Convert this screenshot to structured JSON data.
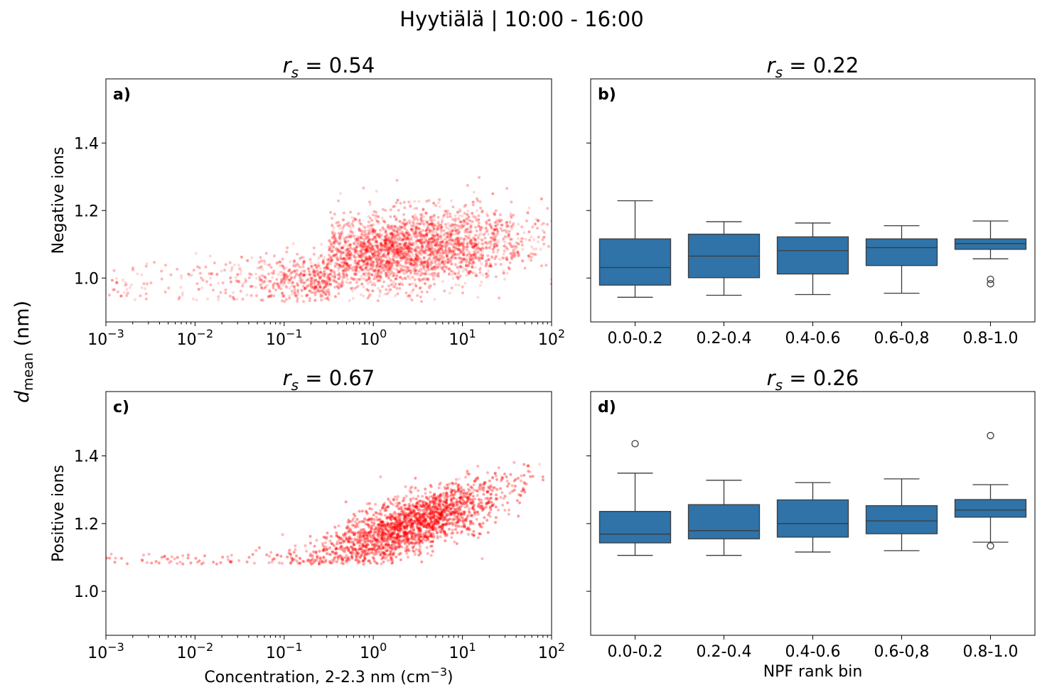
{
  "figure": {
    "suptitle": "Hyytiälä | 10:00 - 16:00",
    "shared_ylabel_main": "d",
    "shared_ylabel_sub": "mean",
    "shared_ylabel_unit": " (nm)"
  },
  "colors": {
    "scatter": "#ff0000",
    "box_fill": "#2f73a8",
    "box_line": "#3b3b3b"
  },
  "chart_data": [
    {
      "id": "a",
      "type": "scatter",
      "panel_label": "a)",
      "title_prefix": "r",
      "title_sub": "s",
      "title_value": " = 0.54",
      "xlabel": "",
      "ylabel": "Negative ions",
      "xscale": "log",
      "xlim": [
        0.001,
        100
      ],
      "ylim": [
        0.87,
        1.59
      ],
      "xtick_values": [
        0.001,
        0.01,
        0.1,
        1,
        10,
        100
      ],
      "xtick_bases": [
        "10",
        "10",
        "10",
        "10",
        "10",
        "10"
      ],
      "xtick_exps": [
        "−3",
        "−2",
        "−1",
        "0",
        "1",
        "2"
      ],
      "ytick_values": [
        1.0,
        1.2,
        1.4
      ],
      "ytick_labels": [
        "1.0",
        "1.2",
        "1.4"
      ],
      "density_core": [
        {
          "x": 0.001,
          "y": 0.97,
          "sx": 0.0,
          "sy": 0.0
        },
        {
          "x": 2.0,
          "y": 1.1,
          "sx": 0.5,
          "sy": 0.07
        }
      ],
      "regression": {
        "log10x_center": 0.3,
        "slope": 0.025,
        "y_at_center": 1.08,
        "spread": 0.055
      },
      "x_log10_range": [
        -3,
        2
      ],
      "alpha": 0.15
    },
    {
      "id": "b",
      "type": "box",
      "panel_label": "b)",
      "title_prefix": "r",
      "title_sub": "s",
      "title_value": " = 0.22",
      "xlabel": "",
      "categories": [
        "0.0-0.2",
        "0.2-0.4",
        "0.4-0.6",
        "0.6-0,8",
        "0.8-1.0"
      ],
      "ylim": [
        0.87,
        1.59
      ],
      "ytick_values": [
        1.0,
        1.2,
        1.4
      ],
      "boxes": [
        {
          "whislo": 0.943,
          "q1": 0.979,
          "med": 1.031,
          "q3": 1.116,
          "whishi": 1.229,
          "fliers": []
        },
        {
          "whislo": 0.949,
          "q1": 1.001,
          "med": 1.065,
          "q3": 1.13,
          "whishi": 1.167,
          "fliers": []
        },
        {
          "whislo": 0.951,
          "q1": 1.012,
          "med": 1.081,
          "q3": 1.122,
          "whishi": 1.163,
          "fliers": []
        },
        {
          "whislo": 0.955,
          "q1": 1.037,
          "med": 1.09,
          "q3": 1.116,
          "whishi": 1.155,
          "fliers": []
        },
        {
          "whislo": 1.057,
          "q1": 1.085,
          "med": 1.102,
          "q3": 1.116,
          "whishi": 1.169,
          "fliers": [
            0.996,
            0.983
          ]
        }
      ]
    },
    {
      "id": "c",
      "type": "scatter",
      "panel_label": "c)",
      "title_prefix": "r",
      "title_sub": "s",
      "title_value": " = 0.67",
      "xlabel": "Concentration, 2-2.3 nm (cm",
      "xlabel_sup": "−3",
      "xlabel_end": ")",
      "ylabel": "Positive ions",
      "xscale": "log",
      "xlim": [
        0.001,
        100
      ],
      "ylim": [
        0.87,
        1.59
      ],
      "xtick_values": [
        0.001,
        0.01,
        0.1,
        1,
        10,
        100
      ],
      "xtick_bases": [
        "10",
        "10",
        "10",
        "10",
        "10",
        "10"
      ],
      "xtick_exps": [
        "−3",
        "−2",
        "−1",
        "0",
        "1",
        "2"
      ],
      "ytick_values": [
        1.0,
        1.2,
        1.4
      ],
      "ytick_labels": [
        "1.0",
        "1.2",
        "1.4"
      ],
      "regression": {
        "log10x_center": 0.45,
        "slope": 0.09,
        "y_at_center": 1.2,
        "spread": 0.04
      },
      "x_log10_range": [
        -3,
        2
      ],
      "alpha": 0.15
    },
    {
      "id": "d",
      "type": "box",
      "panel_label": "d)",
      "title_prefix": "r",
      "title_sub": "s",
      "title_value": " = 0.26",
      "xlabel": "NPF rank bin",
      "categories": [
        "0.0-0.2",
        "0.2-0.4",
        "0.4-0.6",
        "0.6-0,8",
        "0.8-1.0"
      ],
      "ylim": [
        0.87,
        1.59
      ],
      "ytick_values": [
        1.0,
        1.2,
        1.4
      ],
      "boxes": [
        {
          "whislo": 1.106,
          "q1": 1.143,
          "med": 1.169,
          "q3": 1.236,
          "whishi": 1.349,
          "fliers": [
            1.436
          ]
        },
        {
          "whislo": 1.106,
          "q1": 1.155,
          "med": 1.179,
          "q3": 1.256,
          "whishi": 1.328,
          "fliers": []
        },
        {
          "whislo": 1.116,
          "q1": 1.16,
          "med": 1.2,
          "q3": 1.27,
          "whishi": 1.321,
          "fliers": []
        },
        {
          "whislo": 1.12,
          "q1": 1.17,
          "med": 1.208,
          "q3": 1.253,
          "whishi": 1.332,
          "fliers": []
        },
        {
          "whislo": 1.145,
          "q1": 1.219,
          "med": 1.24,
          "q3": 1.271,
          "whishi": 1.315,
          "fliers": [
            1.46,
            1.134
          ]
        }
      ]
    }
  ]
}
